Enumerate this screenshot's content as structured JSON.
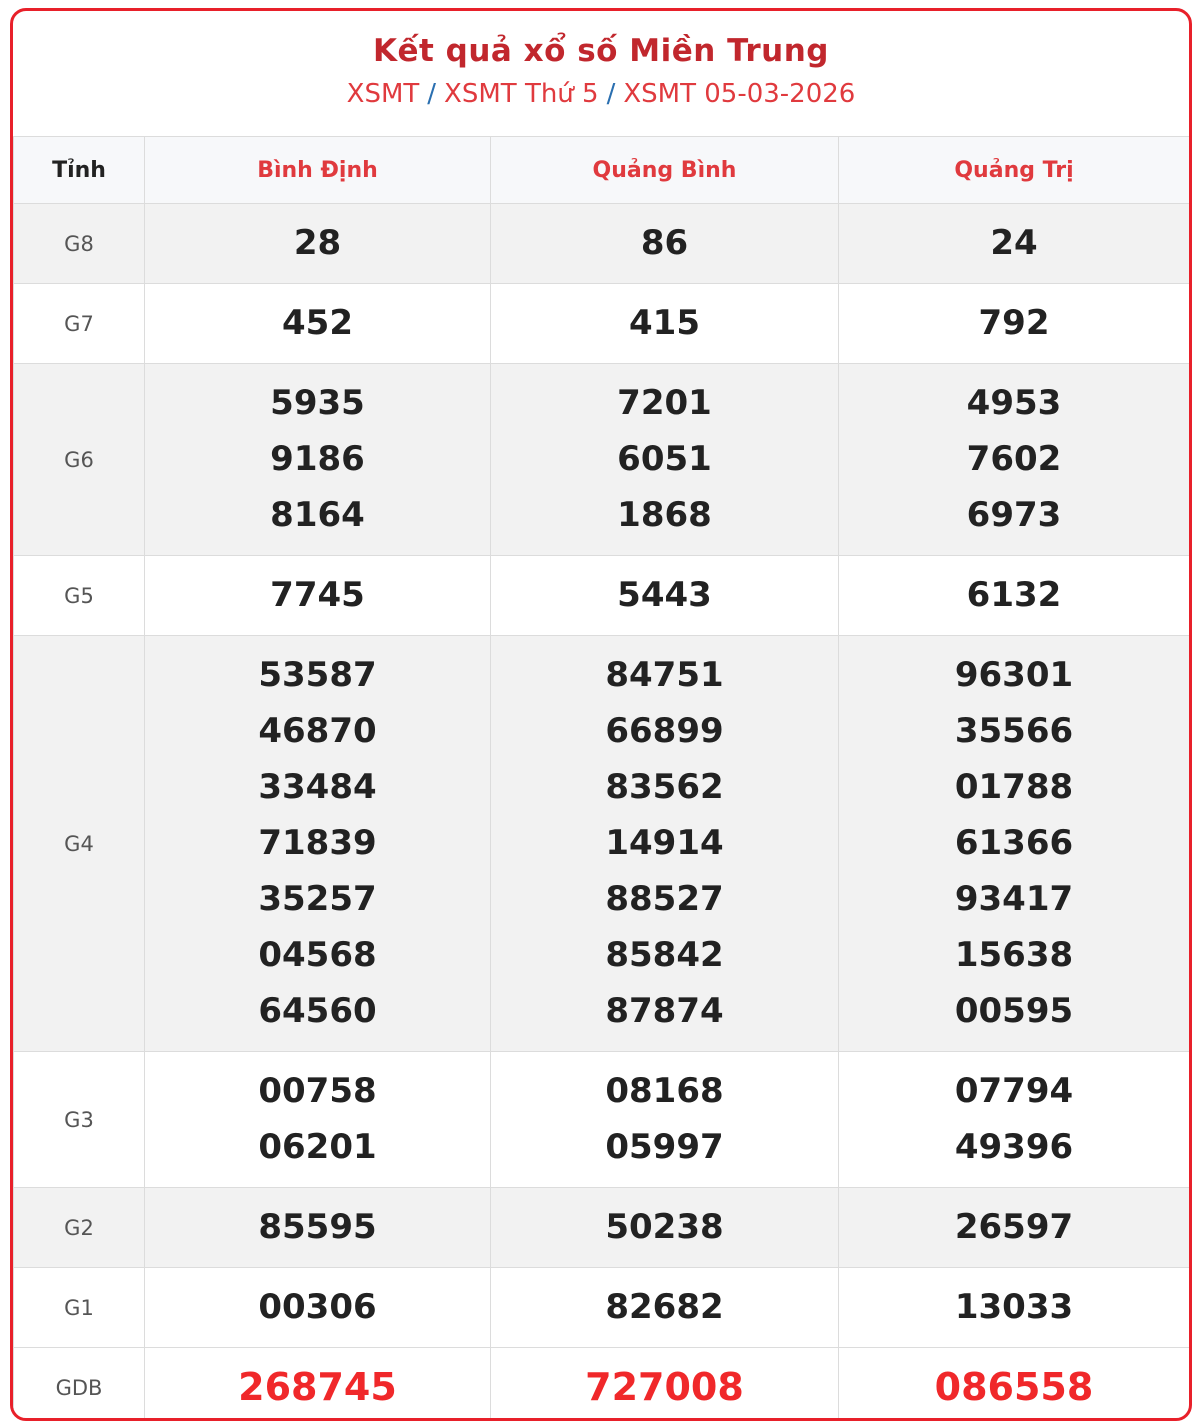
{
  "title": "Kết quả xổ số Miền Trung",
  "breadcrumb": [
    "XSMT",
    "XSMT Thứ 5",
    "XSMT 05-03-2026"
  ],
  "colors": {
    "accent": "#e03a3e",
    "special": "#f0282a",
    "border": "#e8202a"
  },
  "table": {
    "header": [
      "Tỉnh",
      "Bình Định",
      "Quảng Bình",
      "Quảng Trị"
    ],
    "rows": [
      {
        "label": "G8",
        "values": [
          [
            "28"
          ],
          [
            "86"
          ],
          [
            "24"
          ]
        ]
      },
      {
        "label": "G7",
        "values": [
          [
            "452"
          ],
          [
            "415"
          ],
          [
            "792"
          ]
        ]
      },
      {
        "label": "G6",
        "values": [
          [
            "5935",
            "9186",
            "8164"
          ],
          [
            "7201",
            "6051",
            "1868"
          ],
          [
            "4953",
            "7602",
            "6973"
          ]
        ]
      },
      {
        "label": "G5",
        "values": [
          [
            "7745"
          ],
          [
            "5443"
          ],
          [
            "6132"
          ]
        ]
      },
      {
        "label": "G4",
        "values": [
          [
            "53587",
            "46870",
            "33484",
            "71839",
            "35257",
            "04568",
            "64560"
          ],
          [
            "84751",
            "66899",
            "83562",
            "14914",
            "88527",
            "85842",
            "87874"
          ],
          [
            "96301",
            "35566",
            "01788",
            "61366",
            "93417",
            "15638",
            "00595"
          ]
        ]
      },
      {
        "label": "G3",
        "values": [
          [
            "00758",
            "06201"
          ],
          [
            "08168",
            "05997"
          ],
          [
            "07794",
            "49396"
          ]
        ]
      },
      {
        "label": "G2",
        "values": [
          [
            "85595"
          ],
          [
            "50238"
          ],
          [
            "26597"
          ]
        ]
      },
      {
        "label": "G1",
        "values": [
          [
            "00306"
          ],
          [
            "82682"
          ],
          [
            "13033"
          ]
        ]
      },
      {
        "label": "GDB",
        "values": [
          [
            "268745"
          ],
          [
            "727008"
          ],
          [
            "086558"
          ]
        ]
      }
    ]
  }
}
